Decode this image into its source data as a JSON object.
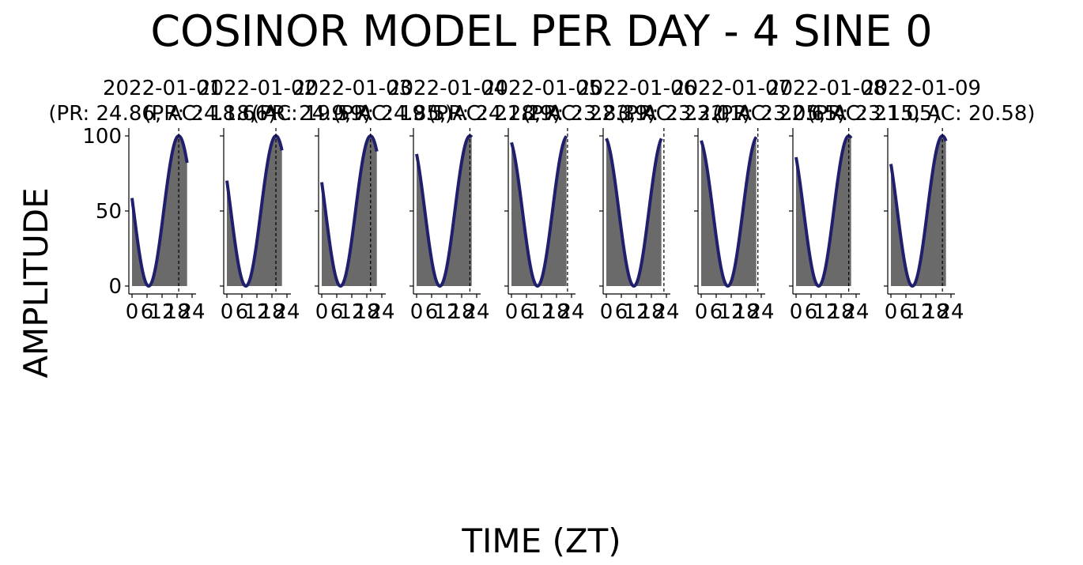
{
  "title": "COSINOR MODEL PER DAY - 4 SINE 0",
  "xlabel": "TIME (ZT)",
  "ylabel": "AMPLITUDE",
  "chart_data": {
    "type": "line",
    "ylim": [
      0,
      100
    ],
    "xlim": [
      0,
      24
    ],
    "yticks": [
      "0",
      "50",
      "100"
    ],
    "xticks": [
      "0",
      "6",
      "12",
      "18",
      "24"
    ],
    "grid": false,
    "line_color": "#1f1f6e",
    "fill_color": "#6a6a6a",
    "panels": [
      {
        "date": "2022-01-01",
        "label": "(PR: 24.86, AC: 18.66)",
        "acrophase": 18.66,
        "x_end": 22.0
      },
      {
        "date": "2022-01-02",
        "label": "(PR: 24.18, AC: 19.59)",
        "acrophase": 19.59,
        "x_end": 22.0
      },
      {
        "date": "2022-01-03",
        "label": "(PR: 24.9, AC: 19.5)",
        "acrophase": 19.5,
        "x_end": 22.0
      },
      {
        "date": "2022-01-04",
        "label": "(PR: 24.85, AC: 21.29)",
        "acrophase": 21.29,
        "x_end": 22.0
      },
      {
        "date": "2022-01-05",
        "label": "(PR: 24.28, AC: 22.39)",
        "acrophase": 22.39,
        "x_end": 22.0
      },
      {
        "date": "2022-01-06",
        "label": "(PR: 23.83, AC: 23.01)",
        "acrophase": 23.01,
        "x_end": 22.0
      },
      {
        "date": "2022-01-07",
        "label": "(PR: 23.22, AC: 22.65)",
        "acrophase": 22.65,
        "x_end": 22.0
      },
      {
        "date": "2022-01-08",
        "label": "(PR: 23.05, AC: 21.05)",
        "acrophase": 21.05,
        "x_end": 22.0
      },
      {
        "date": "2022-01-09",
        "label": "(PR: 23.15, AC: 20.58)",
        "acrophase": 20.58,
        "x_end": 22.0
      }
    ]
  }
}
